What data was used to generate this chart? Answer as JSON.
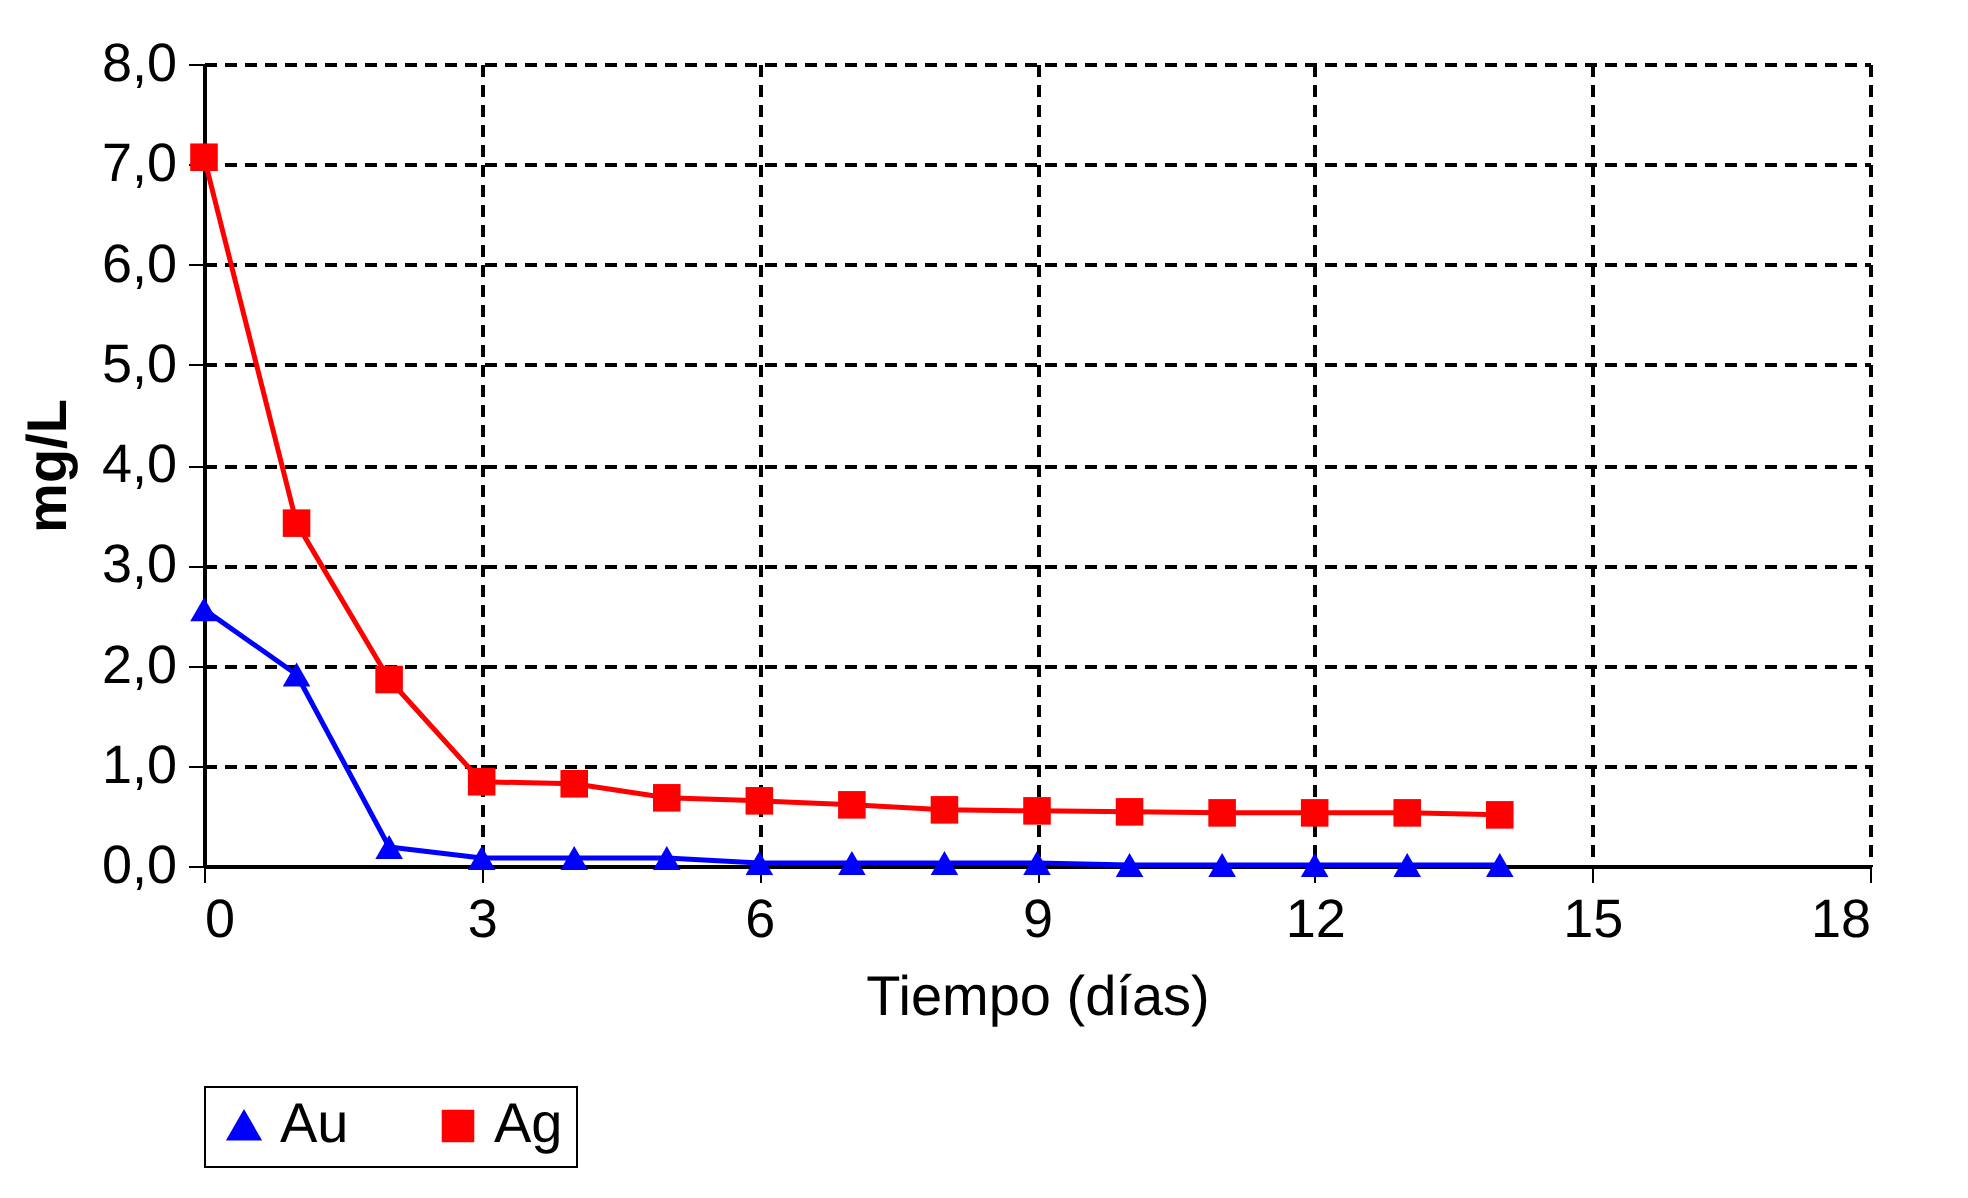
{
  "chart_data": {
    "type": "line",
    "xlabel": "Tiempo (días)",
    "ylabel": "mg/L",
    "x": [
      0,
      1,
      2,
      3,
      4,
      5,
      6,
      7,
      8,
      9,
      10,
      11,
      12,
      13,
      14
    ],
    "series": [
      {
        "name": "Au",
        "color": "#0000ff",
        "marker": "triangle",
        "values": [
          2.56,
          1.91,
          0.19,
          0.08,
          0.08,
          0.08,
          0.03,
          0.03,
          0.03,
          0.03,
          0.01,
          0.01,
          0.01,
          0.01,
          0.01
        ]
      },
      {
        "name": "Ag",
        "color": "#ff0000",
        "marker": "square",
        "values": [
          7.07,
          3.42,
          1.86,
          0.84,
          0.82,
          0.68,
          0.65,
          0.61,
          0.56,
          0.55,
          0.54,
          0.53,
          0.53,
          0.53,
          0.51
        ]
      }
    ],
    "xlim": [
      0,
      18
    ],
    "xticks": [
      0,
      3,
      6,
      9,
      12,
      15,
      18
    ],
    "ylim": [
      0,
      8
    ],
    "yticks": [
      {
        "value": 0,
        "label": "0,0"
      },
      {
        "value": 1,
        "label": "1,0"
      },
      {
        "value": 2,
        "label": "2,0"
      },
      {
        "value": 3,
        "label": "3,0"
      },
      {
        "value": 4,
        "label": "4,0"
      },
      {
        "value": 5,
        "label": "5,0"
      },
      {
        "value": 6,
        "label": "6,0"
      },
      {
        "value": 7,
        "label": "7,0"
      },
      {
        "value": 8,
        "label": "8,0"
      }
    ],
    "grid": true,
    "legend": "bottom",
    "line_style": "solid"
  }
}
